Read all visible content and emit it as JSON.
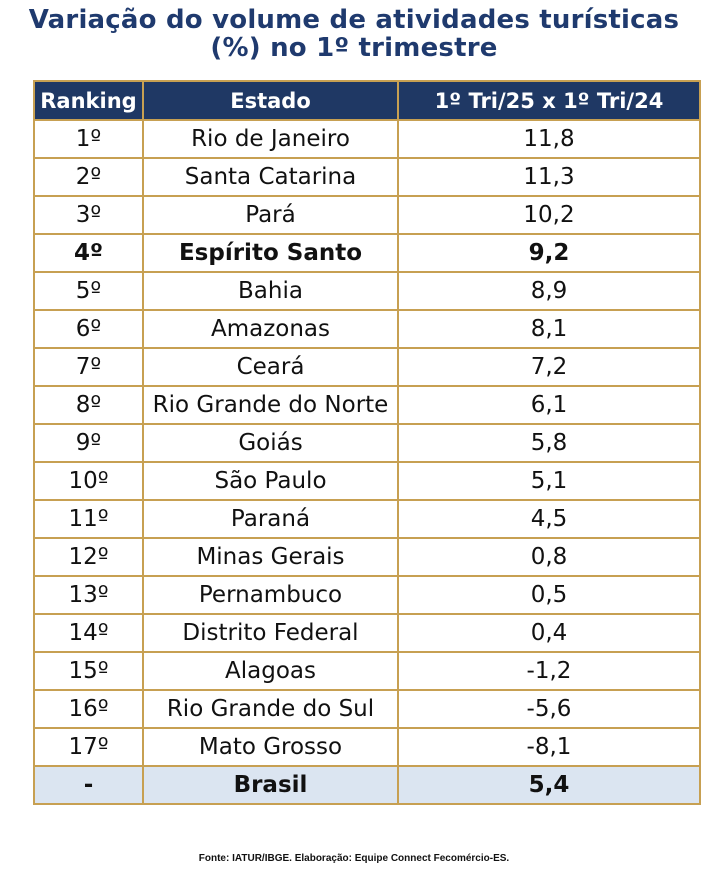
{
  "title_line1": "Variação do volume de atividades turísticas",
  "title_line2": "(%) no 1º trimestre",
  "headers": [
    "Ranking",
    "Estado",
    "1º Tri/25 x 1º Tri/24"
  ],
  "rows": [
    {
      "rank": "1º",
      "state": "Rio de Janeiro",
      "value": "11,8"
    },
    {
      "rank": "2º",
      "state": "Santa Catarina",
      "value": "11,3"
    },
    {
      "rank": "3º",
      "state": "Pará",
      "value": "10,2"
    },
    {
      "rank": "4º",
      "state": "Espírito Santo",
      "value": "9,2"
    },
    {
      "rank": "5º",
      "state": "Bahia",
      "value": "8,9"
    },
    {
      "rank": "6º",
      "state": "Amazonas",
      "value": "8,1"
    },
    {
      "rank": "7º",
      "state": "Ceará",
      "value": "7,2"
    },
    {
      "rank": "8º",
      "state": "Rio Grande do Norte",
      "value": "6,1"
    },
    {
      "rank": "9º",
      "state": "Goiás",
      "value": "5,8"
    },
    {
      "rank": "10º",
      "state": "São Paulo",
      "value": "5,1"
    },
    {
      "rank": "11º",
      "state": "Paraná",
      "value": "4,5"
    },
    {
      "rank": "12º",
      "state": "Minas Gerais",
      "value": "0,8"
    },
    {
      "rank": "13º",
      "state": "Pernambuco",
      "value": "0,5"
    },
    {
      "rank": "14º",
      "state": "Distrito Federal",
      "value": "0,4"
    },
    {
      "rank": "15º",
      "state": "Alagoas",
      "value": "-1,2"
    },
    {
      "rank": "16º",
      "state": "Rio Grande do Sul",
      "value": "-5,6"
    },
    {
      "rank": "17º",
      "state": "Mato Grosso",
      "value": "-8,1"
    }
  ],
  "total": {
    "rank": "-",
    "state": "Brasil",
    "value": "5,4"
  },
  "source": "Fonte: IATUR/IBGE. Elaboração: Equipe Connect Fecomércio-ES.",
  "colors": {
    "header_bg": "#1f3864",
    "border": "#c7a052",
    "total_bg": "#dbe5f1",
    "title": "#1f3a6e"
  }
}
